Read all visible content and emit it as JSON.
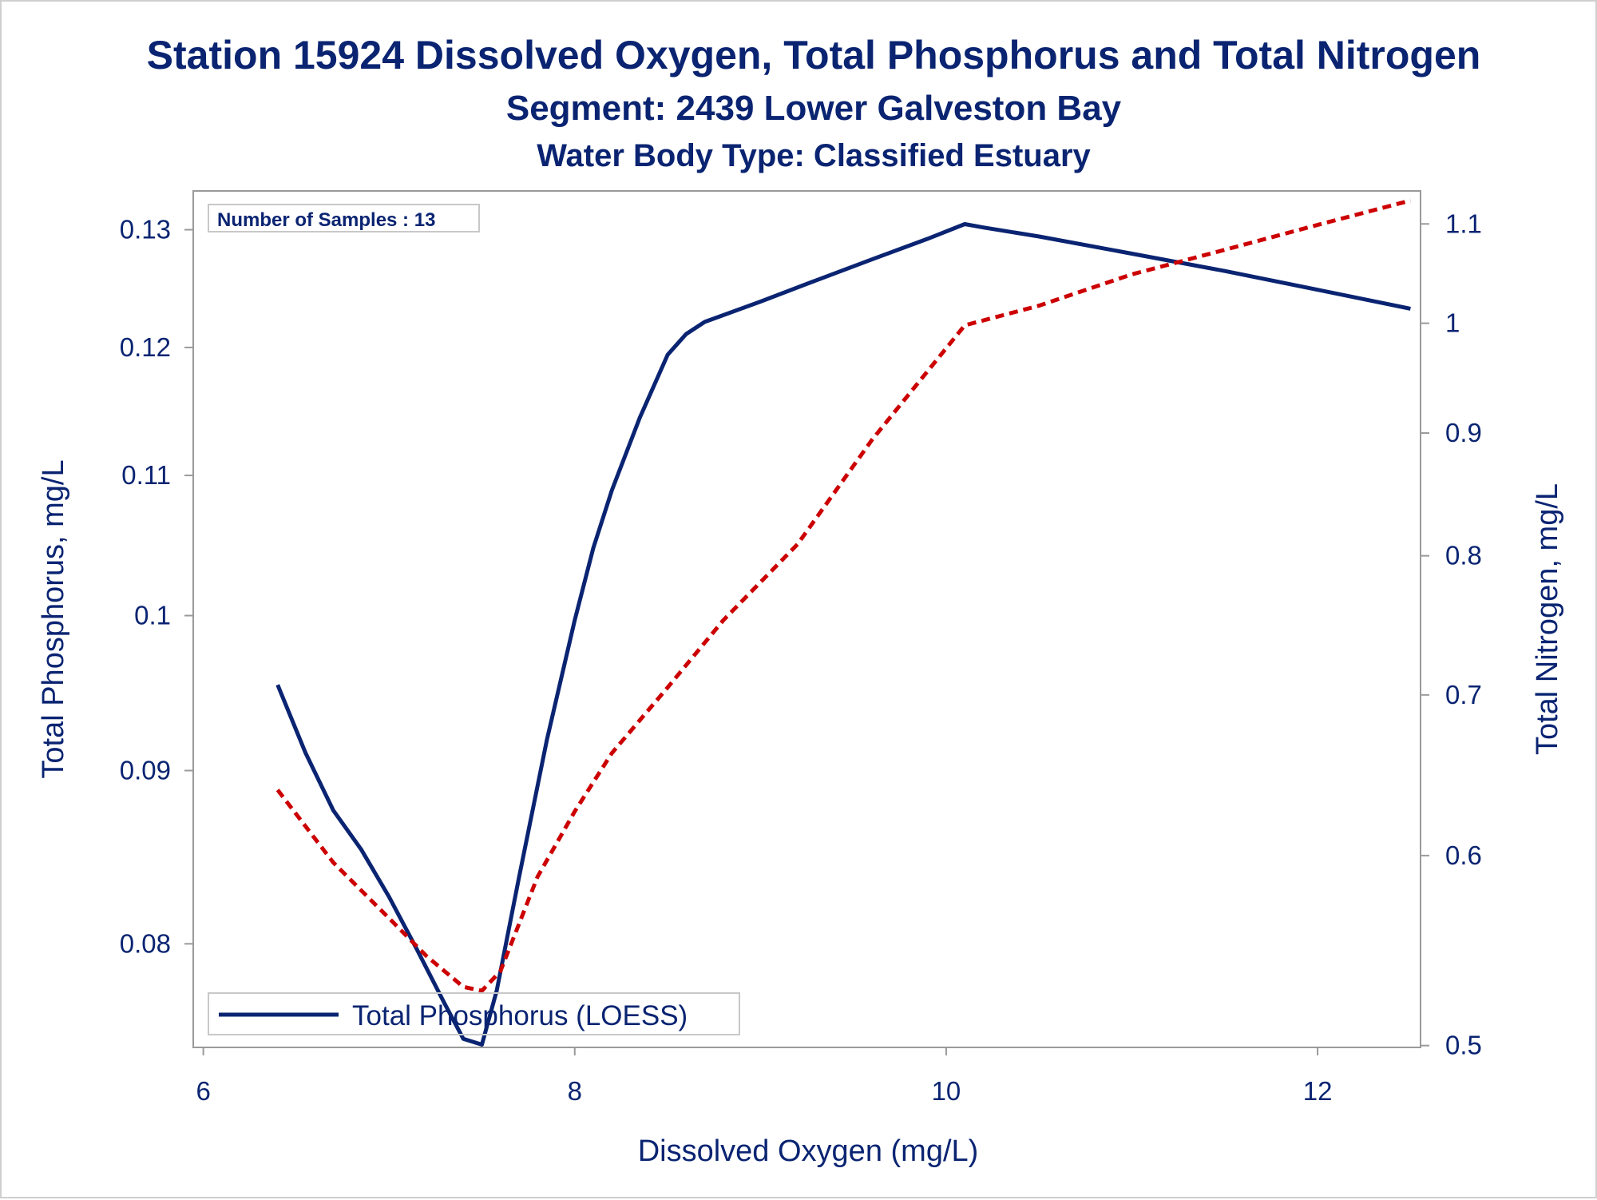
{
  "chart_data": {
    "type": "line",
    "title": "Station 15924  Dissolved Oxygen, Total Phosphorus and Total Nitrogen",
    "subtitle": "Segment: 2439  Lower Galveston Bay",
    "subtitle2": "Water Body Type: Classified Estuary",
    "xlabel": "Dissolved Oxygen (mg/L)",
    "ylabel": "Total Phosphorus, mg/L",
    "y2label": "Total Nitrogen, mg/L",
    "xlim": [
      5.95,
      12.55
    ],
    "ylim": [
      0.0746,
      0.1334
    ],
    "y2lim": [
      0.4995,
      1.1345
    ],
    "x_ticks": [
      6,
      8,
      10,
      12
    ],
    "y_ticks": [
      0.08,
      0.09,
      0.1,
      0.11,
      0.12,
      0.13
    ],
    "y2_ticks": [
      0.5,
      0.6,
      0.7,
      0.8,
      0.9,
      1,
      1.1
    ],
    "annotation": "Number of Samples : 13",
    "legend": {
      "position": "bottom-left",
      "entries": [
        "Total Phosphorus (LOESS)"
      ]
    },
    "grid": false,
    "series": [
      {
        "name": "Total Phosphorus (LOESS)",
        "axis": "left",
        "style": "solid",
        "color": "#0a2472",
        "x": [
          6.4,
          6.55,
          6.7,
          6.85,
          7.0,
          7.15,
          7.3,
          7.4,
          7.5,
          7.58,
          7.7,
          7.85,
          8.0,
          8.1,
          8.2,
          8.35,
          8.5,
          8.6,
          8.7,
          9.0,
          9.3,
          9.6,
          9.9,
          10.1,
          10.2,
          10.5,
          11.0,
          11.5,
          12.0,
          12.5
        ],
        "y": [
          0.0954,
          0.0911,
          0.0876,
          0.0853,
          0.0826,
          0.0797,
          0.0768,
          0.075,
          0.0747,
          0.0775,
          0.0837,
          0.0919,
          0.0997,
          0.1047,
          0.1089,
          0.1144,
          0.1194,
          0.1211,
          0.1221,
          0.1238,
          0.1256,
          0.1274,
          0.1292,
          0.1305,
          0.1302,
          0.1294,
          0.1279,
          0.1264,
          0.1248,
          0.1232
        ]
      },
      {
        "name": "",
        "axis": "right",
        "style": "dashed",
        "color": "#cc0000",
        "x": [
          6.4,
          6.7,
          7.0,
          7.2,
          7.4,
          7.5,
          7.6,
          7.8,
          8.0,
          8.2,
          8.5,
          8.8,
          9.2,
          9.6,
          10.1,
          10.5,
          11.0,
          11.5,
          12.0,
          12.5
        ],
        "y": [
          0.639,
          0.596,
          0.565,
          0.545,
          0.529,
          0.527,
          0.537,
          0.588,
          0.626,
          0.662,
          0.705,
          0.752,
          0.809,
          0.894,
          0.998,
          1.017,
          1.048,
          1.073,
          1.099,
          1.125
        ]
      }
    ]
  }
}
